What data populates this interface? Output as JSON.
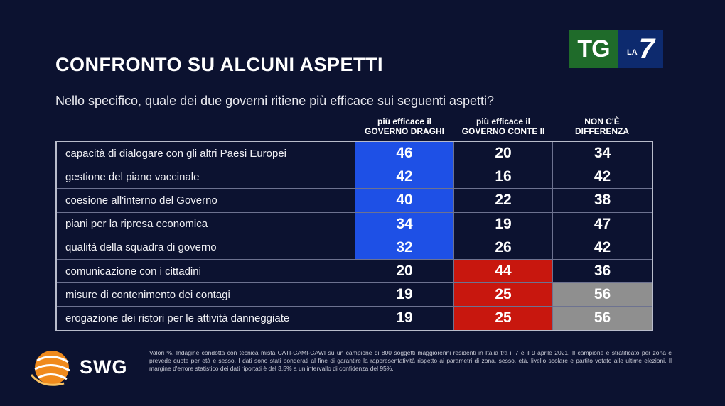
{
  "title": "CONFRONTO SU ALCUNI ASPETTI",
  "question": "Nello specifico, quale dei due governi ritiene più efficace sui seguenti aspetti?",
  "logo": {
    "tg": "TG",
    "la": "LA",
    "seven": "7",
    "brand_green": "#1f6b2a",
    "brand_blue": "#0d2a6e"
  },
  "headers": {
    "draghi_line1": "più efficace il",
    "draghi_line2": "GOVERNO DRAGHI",
    "conte_line1": "più efficace il",
    "conte_line2": "GOVERNO CONTE II",
    "none_line1": "NON C'È",
    "none_line2": "DIFFERENZA"
  },
  "colors": {
    "draghi_highlight": "#1e50e6",
    "conte_highlight": "#c8170e",
    "none_highlight": "#8f8f8f",
    "default": "#0c1230"
  },
  "chart_data": {
    "type": "table",
    "title": "CONFRONTO SU ALCUNI ASPETTI",
    "columns": [
      "più efficace il GOVERNO DRAGHI",
      "più efficace il GOVERNO CONTE II",
      "NON C'È DIFFERENZA"
    ],
    "unit": "%",
    "rows": [
      {
        "label": "capacità di dialogare con gli altri Paesi Europei",
        "values": [
          46,
          20,
          34
        ],
        "highlight": 0
      },
      {
        "label": "gestione del piano vaccinale",
        "values": [
          42,
          16,
          42
        ],
        "highlight": 0
      },
      {
        "label": "coesione all'interno del Governo",
        "values": [
          40,
          22,
          38
        ],
        "highlight": 0
      },
      {
        "label": "piani per la ripresa economica",
        "values": [
          34,
          19,
          47
        ],
        "highlight": 0
      },
      {
        "label": "qualità della squadra di governo",
        "values": [
          32,
          26,
          42
        ],
        "highlight": 0
      },
      {
        "label": "comunicazione con i cittadini",
        "values": [
          20,
          44,
          36
        ],
        "highlight": 1
      },
      {
        "label": "misure di contenimento dei contagi",
        "values": [
          19,
          25,
          56
        ],
        "highlight": [
          1,
          2
        ]
      },
      {
        "label": "erogazione dei ristori per le attività danneggiate",
        "values": [
          19,
          25,
          56
        ],
        "highlight": [
          1,
          2
        ]
      }
    ]
  },
  "source": {
    "brand": "SWG",
    "note": "Valori %. Indagine condotta con tecnica mista CATI-CAMI-CAWI su un campione di 800 soggetti maggiorenni residenti in Italia tra il 7 e il 9 aprile 2021. Il campione è stratificato per zona e prevede quote per età e sesso. I dati sono stati ponderati al fine di garantire la rappresentatività rispetto ai parametri di zona, sesso, età, livello scolare e partito votato alle ultime elezioni. Il margine d'errore statistico dei dati riportati è del 3,5% a un intervallo di confidenza del 95%."
  }
}
